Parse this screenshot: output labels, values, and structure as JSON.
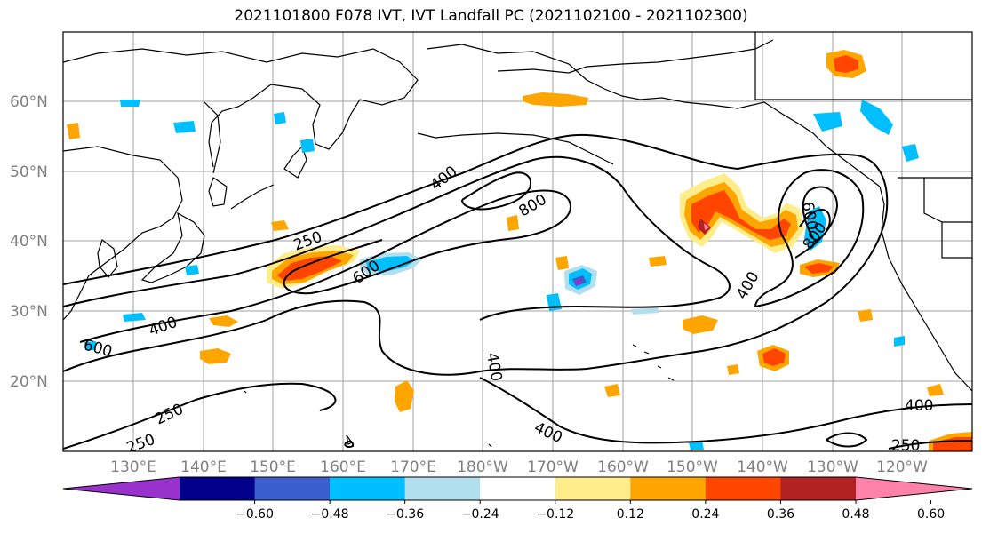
{
  "title": "2021101800 F078 IVT, IVT Landfall PC (2021102100 - 2021102300)",
  "map": {
    "lat_labels": [
      "60°N",
      "50°N",
      "40°N",
      "30°N",
      "20°N"
    ],
    "lon_labels": [
      "130°E",
      "140°E",
      "150°E",
      "160°E",
      "170°E",
      "180°W",
      "170°W",
      "160°W",
      "150°W",
      "140°W",
      "130°W",
      "120°W"
    ],
    "contour_labels": [
      "400",
      "800",
      "250",
      "600",
      "400",
      "600",
      "600",
      "800",
      "400",
      "400",
      "400",
      "250",
      "400",
      "250",
      "250",
      "250"
    ]
  },
  "colorbar": {
    "colors": [
      "#9932cc",
      "#00008b",
      "#3a5fcd",
      "#00bfff",
      "#b2dfee",
      "#ffffff",
      "#ffec8b",
      "#ffa500",
      "#ff4500",
      "#b22222",
      "#ff82ab"
    ],
    "tick_labels": [
      "−0.60",
      "−0.48",
      "−0.36",
      "−0.24",
      "−0.12",
      "0.12",
      "0.24",
      "0.36",
      "0.48",
      "0.60"
    ]
  }
}
